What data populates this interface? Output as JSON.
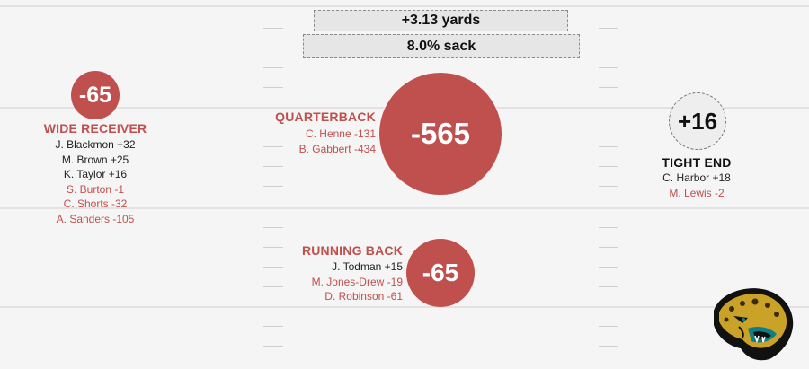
{
  "summary": {
    "yards": "+3.13 yards",
    "sack": "8.0% sack"
  },
  "qb": {
    "title": "QUARTERBACK",
    "total": "-565",
    "players": [
      {
        "name": "C. Henne -131",
        "sign": "minus"
      },
      {
        "name": "B. Gabbert -434",
        "sign": "minus"
      }
    ]
  },
  "wr": {
    "title": "WIDE RECEIVER",
    "total": "-65",
    "players": [
      {
        "name": "J. Blackmon +32",
        "sign": "plus"
      },
      {
        "name": "M. Brown +25",
        "sign": "plus"
      },
      {
        "name": "K. Taylor +16",
        "sign": "plus"
      },
      {
        "name": "S. Burton -1",
        "sign": "minus"
      },
      {
        "name": "C. Shorts -32",
        "sign": "minus"
      },
      {
        "name": "A. Sanders -105",
        "sign": "minus"
      }
    ]
  },
  "te": {
    "title": "TIGHT END",
    "total": "+16",
    "players": [
      {
        "name": "C. Harbor +18",
        "sign": "plus"
      },
      {
        "name": "M. Lewis -2",
        "sign": "minus"
      }
    ]
  },
  "rb": {
    "title": "RUNNING BACK",
    "total": "-65",
    "players": [
      {
        "name": "J. Todman +15",
        "sign": "plus"
      },
      {
        "name": "M. Jones-Drew -19",
        "sign": "minus"
      },
      {
        "name": "D. Robinson -61",
        "sign": "minus"
      }
    ]
  },
  "colors": {
    "negative": "#c0504d",
    "positive": "#222222",
    "field": "#f5f5f5"
  },
  "logo": {
    "icon": "jaguar-logo-icon"
  }
}
